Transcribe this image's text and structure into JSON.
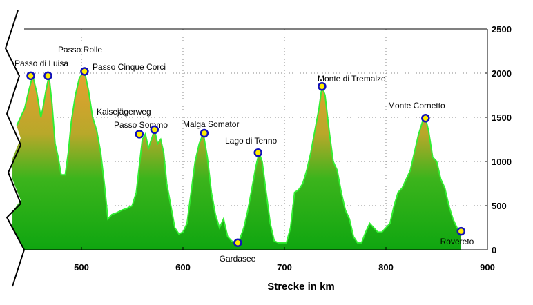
{
  "chart_data": {
    "type": "area",
    "xlabel": "Strecke in km",
    "ylabel": "",
    "xlim": [
      430,
      900
    ],
    "ylim": [
      0,
      2500
    ],
    "x_ticks": [
      500,
      600,
      700,
      800,
      900
    ],
    "y_ticks": [
      0,
      500,
      1000,
      1500,
      2000,
      2500
    ],
    "grid": true,
    "colors": {
      "line": "#33ee33",
      "fill_low": "#11aa11",
      "fill_high": "#d4aa33",
      "marker_fill": "#ffee00",
      "marker_edge": "#1111bb",
      "grid": "#888888"
    },
    "series": [
      {
        "x": [
          432,
          436,
          440,
          444,
          448,
          452,
          456,
          460,
          462,
          465,
          468,
          471,
          474,
          477,
          480,
          484,
          487,
          490,
          494,
          498,
          503,
          507,
          511,
          515,
          519,
          523,
          526,
          530,
          535,
          540,
          545,
          550,
          554,
          557,
          560,
          563,
          566,
          569,
          572,
          575,
          578,
          581,
          584,
          588,
          592,
          596,
          600,
          604,
          608,
          612,
          616,
          620,
          624,
          628,
          632,
          636,
          640,
          644,
          648,
          652,
          656,
          660,
          664,
          668,
          672,
          675,
          678,
          682,
          686,
          690,
          694,
          698,
          702,
          706,
          710,
          714,
          718,
          722,
          726,
          730,
          734,
          737,
          740,
          744,
          748,
          752,
          756,
          760,
          764,
          768,
          772,
          776,
          780,
          784,
          788,
          792,
          796,
          800,
          804,
          808,
          812,
          816,
          820,
          824,
          828,
          832,
          836,
          839,
          842,
          846,
          850,
          854,
          858,
          862,
          866,
          870,
          874
        ],
        "y": [
          1150,
          1400,
          1500,
          1600,
          1800,
          1970,
          1780,
          1500,
          1600,
          1800,
          1970,
          1650,
          1200,
          1050,
          850,
          850,
          1100,
          1450,
          1750,
          1950,
          2020,
          1800,
          1500,
          1350,
          1100,
          700,
          350,
          400,
          420,
          450,
          470,
          500,
          650,
          950,
          1250,
          1310,
          1150,
          1250,
          1360,
          1200,
          1250,
          1100,
          750,
          500,
          250,
          180,
          200,
          300,
          650,
          1000,
          1200,
          1320,
          1050,
          650,
          400,
          250,
          350,
          150,
          100,
          80,
          120,
          250,
          450,
          700,
          950,
          1100,
          1000,
          650,
          300,
          100,
          80,
          80,
          80,
          250,
          650,
          680,
          750,
          900,
          1100,
          1350,
          1600,
          1850,
          1750,
          1350,
          1000,
          900,
          650,
          450,
          350,
          150,
          80,
          80,
          200,
          300,
          250,
          200,
          200,
          250,
          300,
          500,
          650,
          700,
          800,
          900,
          1100,
          1300,
          1450,
          1490,
          1350,
          1050,
          1000,
          800,
          700,
          500,
          350,
          250,
          210
        ]
      }
    ],
    "peaks": [
      {
        "name": "Passo di Luisa",
        "x": 450,
        "y": 1970
      },
      {
        "name": "",
        "x": 467,
        "y": 1970
      },
      {
        "name": "Passo Rolle",
        "x": 503,
        "y": 2020
      },
      {
        "name": "Passo Cinque Corci",
        "x": 503,
        "y": 2020
      },
      {
        "name": "Passo Sommo",
        "x": 557,
        "y": 1310
      },
      {
        "name": "Kaisejägerweg",
        "x": 572,
        "y": 1360
      },
      {
        "name": "Malga Somator",
        "x": 621,
        "y": 1320
      },
      {
        "name": "Gardasee",
        "x": 654,
        "y": 80
      },
      {
        "name": "Lago di Tenno",
        "x": 674,
        "y": 1100
      },
      {
        "name": "Monte di Tremalzo",
        "x": 737,
        "y": 1850
      },
      {
        "name": "Monte Cornetto",
        "x": 839,
        "y": 1490
      },
      {
        "name": "Rovereto",
        "x": 874,
        "y": 210
      }
    ]
  },
  "labels": {
    "x_title": "Strecke in km"
  }
}
